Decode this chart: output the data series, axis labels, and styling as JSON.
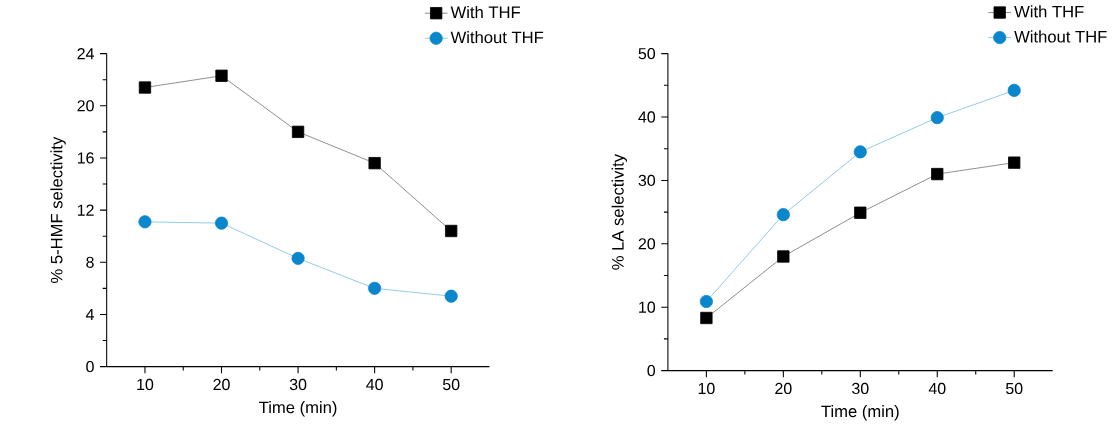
{
  "chart_data": [
    {
      "type": "line",
      "xlabel": "Time (min)",
      "ylabel": "% 5-HMF selectivity",
      "x": [
        10,
        20,
        30,
        40,
        50
      ],
      "xlim": [
        5,
        55
      ],
      "xticks": [
        10,
        20,
        30,
        40,
        50
      ],
      "ylim": [
        0,
        24
      ],
      "yticks": [
        0,
        4,
        8,
        12,
        16,
        20,
        24
      ],
      "legend": "top right",
      "line_style": "solid",
      "series": [
        {
          "name": "With THF",
          "color": "#000000",
          "marker": "square",
          "values": [
            21.4,
            22.3,
            18.0,
            15.6,
            10.4
          ]
        },
        {
          "name": "Without THF",
          "color": "#0a87cc",
          "marker": "circle",
          "values": [
            11.1,
            11.0,
            8.3,
            6.0,
            5.4
          ]
        }
      ]
    },
    {
      "type": "line",
      "xlabel": "Time (min)",
      "ylabel": "% LA selectivity",
      "x": [
        10,
        20,
        30,
        40,
        50
      ],
      "xlim": [
        5,
        55
      ],
      "xticks": [
        10,
        20,
        30,
        40,
        50
      ],
      "ylim": [
        0,
        50
      ],
      "yticks": [
        0,
        10,
        20,
        30,
        40,
        50
      ],
      "legend": "top right",
      "line_style": "solid",
      "series": [
        {
          "name": "With THF",
          "color": "#000000",
          "marker": "square",
          "values": [
            8.3,
            18.0,
            24.9,
            31.0,
            32.8
          ]
        },
        {
          "name": "Without THF",
          "color": "#0a87cc",
          "marker": "circle",
          "values": [
            10.9,
            24.6,
            34.5,
            39.9,
            44.2
          ]
        }
      ]
    }
  ]
}
